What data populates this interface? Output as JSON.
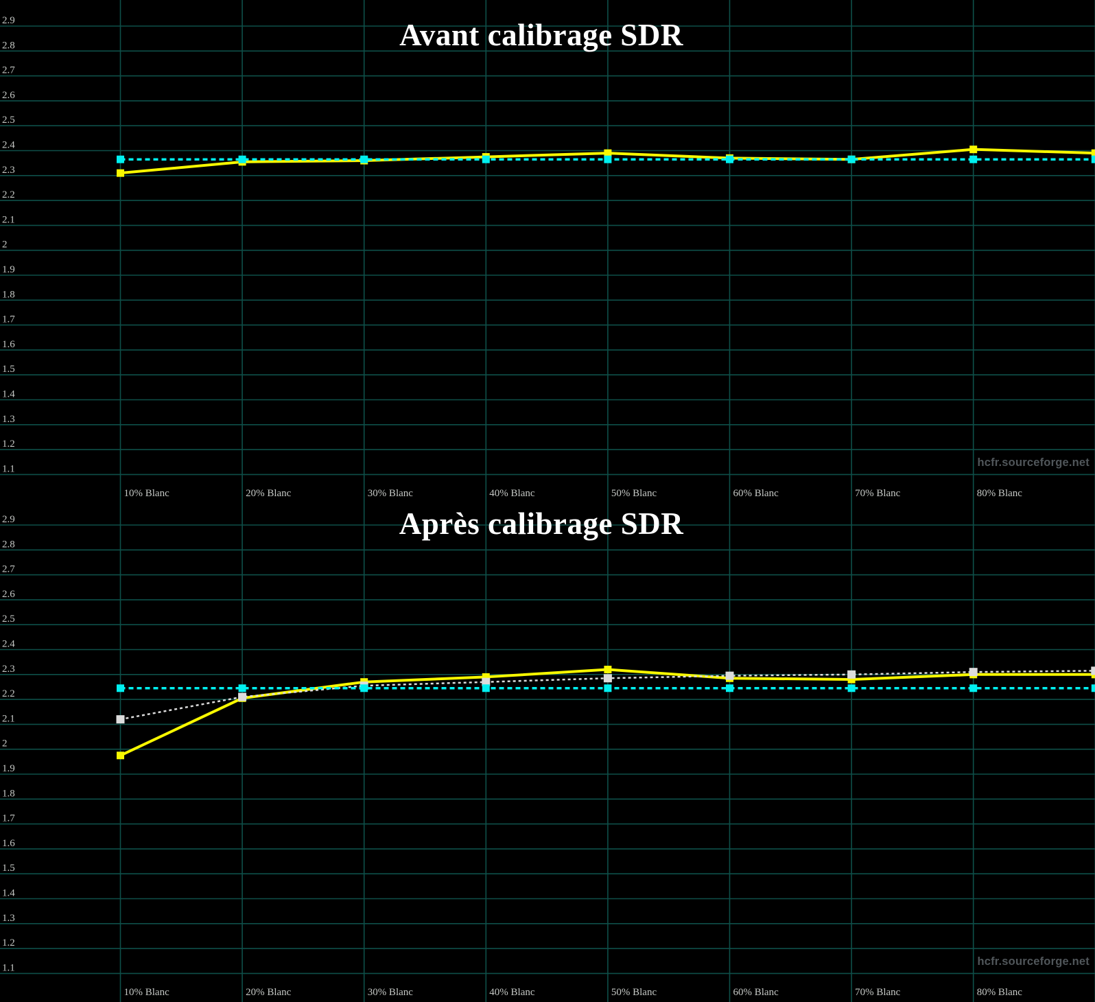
{
  "watermark": "hcfr.sourceforge.net",
  "colors": {
    "background": "#000000",
    "grid": "#0e4f49",
    "title": "#ffffff",
    "tick_label": "#c5c8c5",
    "axis_label": "#c5c8c5",
    "watermark": "#50565a",
    "reference": "#00f0f0",
    "average": "#dcdcdc",
    "measured": "#f8f800"
  },
  "chart_data": [
    {
      "type": "line",
      "title": "Avant calibrage SDR",
      "xlabel": "",
      "ylabel": "",
      "ylim": [
        1.1,
        2.9
      ],
      "ytick_step": 0.1,
      "grid": true,
      "legend_position": "none",
      "ytick_labels": [
        "2.9",
        "2.8",
        "2.7",
        "2.6",
        "2.5",
        "2.4",
        "2.3",
        "2.2",
        "2.1",
        "2",
        "1.9",
        "1.8",
        "1.7",
        "1.6",
        "1.5",
        "1.4",
        "1.3",
        "1.2",
        "1.1"
      ],
      "categories": [
        "10% Blanc",
        "20% Blanc",
        "30% Blanc",
        "40% Blanc",
        "50% Blanc",
        "60% Blanc",
        "70% Blanc",
        "80% Blanc"
      ],
      "x_percent": [
        10,
        20,
        30,
        40,
        50,
        60,
        70,
        80,
        90
      ],
      "series": [
        {
          "id": "measured-gamma",
          "style": "solid",
          "marker": "square",
          "color_key": "measured",
          "values": [
            2.31,
            2.355,
            2.36,
            2.375,
            2.39,
            2.37,
            2.365,
            2.405,
            2.39
          ]
        },
        {
          "id": "reference-gamma",
          "style": "dashed",
          "marker": "square",
          "color_key": "reference",
          "values": [
            2.365,
            2.365,
            2.365,
            2.365,
            2.365,
            2.365,
            2.365,
            2.365,
            2.365
          ]
        }
      ]
    },
    {
      "type": "line",
      "title": "Après calibrage SDR",
      "xlabel": "",
      "ylabel": "",
      "ylim": [
        1.1,
        2.9
      ],
      "ytick_step": 0.1,
      "grid": true,
      "legend_position": "none",
      "ytick_labels": [
        "2.9",
        "2.8",
        "2.7",
        "2.6",
        "2.5",
        "2.4",
        "2.3",
        "2.2",
        "2.1",
        "2",
        "1.9",
        "1.8",
        "1.7",
        "1.6",
        "1.5",
        "1.4",
        "1.3",
        "1.2",
        "1.1"
      ],
      "categories": [
        "10% Blanc",
        "20% Blanc",
        "30% Blanc",
        "40% Blanc",
        "50% Blanc",
        "60% Blanc",
        "70% Blanc",
        "80% Blanc"
      ],
      "x_percent": [
        10,
        20,
        30,
        40,
        50,
        60,
        70,
        80,
        90
      ],
      "series": [
        {
          "id": "measured-gamma",
          "style": "solid",
          "marker": "square",
          "color_key": "measured",
          "values": [
            1.975,
            2.205,
            2.27,
            2.29,
            2.32,
            2.285,
            2.28,
            2.3,
            2.3
          ]
        },
        {
          "id": "average-gamma",
          "style": "dotted",
          "marker": "square",
          "color_key": "average",
          "values": [
            2.12,
            2.21,
            2.255,
            2.27,
            2.285,
            2.295,
            2.3,
            2.31,
            2.315
          ]
        },
        {
          "id": "reference-gamma",
          "style": "dashed",
          "marker": "square",
          "color_key": "reference",
          "values": [
            2.245,
            2.245,
            2.245,
            2.245,
            2.245,
            2.245,
            2.245,
            2.245,
            2.245
          ]
        }
      ]
    }
  ]
}
